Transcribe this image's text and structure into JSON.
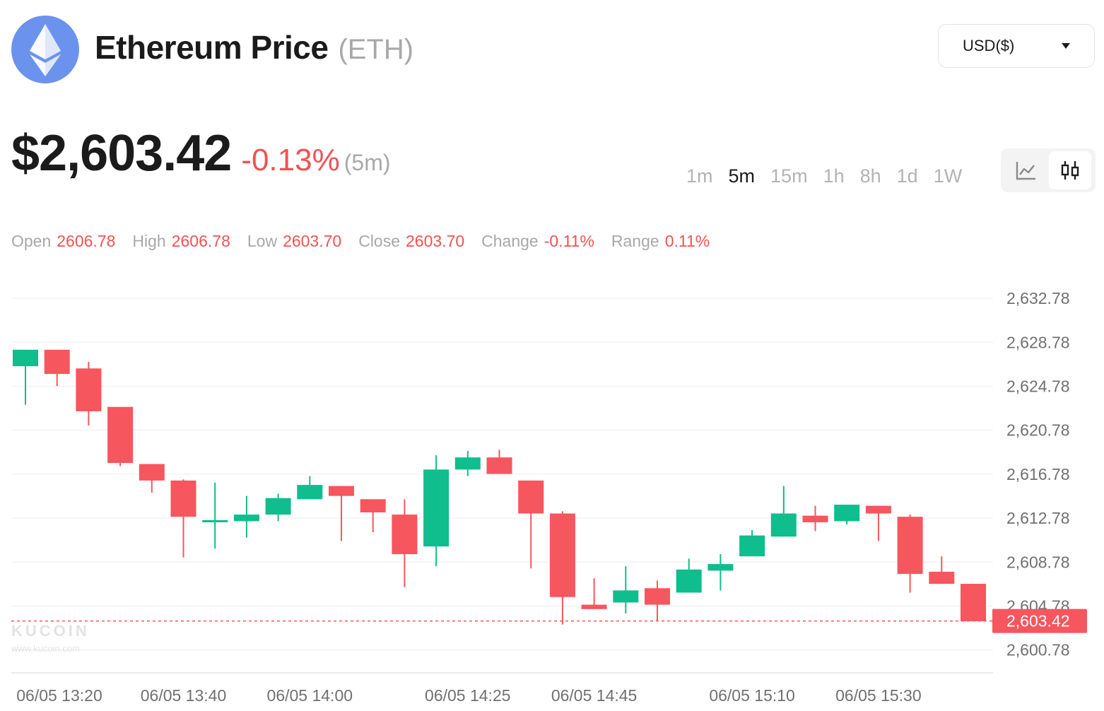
{
  "header": {
    "title": "Ethereum Price",
    "ticker": "(ETH)",
    "currency": "USD($)",
    "logo_icon": "ethereum-logo-icon"
  },
  "price": {
    "current": "$2,603.42",
    "change_pct": "-0.13%",
    "period": "(5m)"
  },
  "intervals": [
    "1m",
    "5m",
    "15m",
    "1h",
    "8h",
    "1d",
    "1W"
  ],
  "active_interval": "5m",
  "chart_modes": [
    "line-chart-icon",
    "candlestick-icon"
  ],
  "active_chart_mode": "candlestick-icon",
  "ohlc": [
    {
      "label": "Open",
      "value": "2606.78"
    },
    {
      "label": "High",
      "value": "2606.78"
    },
    {
      "label": "Low",
      "value": "2603.70"
    },
    {
      "label": "Close",
      "value": "2603.70"
    },
    {
      "label": "Change",
      "value": "-0.11%"
    },
    {
      "label": "Range",
      "value": "0.11%"
    }
  ],
  "watermark": {
    "brand": "KUCOIN",
    "url": "www.kucoin.com"
  },
  "colors": {
    "up": "#10bd8d",
    "down": "#f6565e",
    "grid": "#eeeeee",
    "axis_text": "#707070"
  },
  "chart_data": {
    "type": "candlestick",
    "interval": "5m",
    "y_ticks": [
      "2,632.78",
      "2,628.78",
      "2,624.78",
      "2,620.78",
      "2,616.78",
      "2,612.78",
      "2,608.78",
      "2,604.78",
      "2,600.78"
    ],
    "y_tick_values": [
      2632.78,
      2628.78,
      2624.78,
      2620.78,
      2616.78,
      2612.78,
      2608.78,
      2604.78,
      2600.78
    ],
    "ylim": [
      2598.7,
      2634.2
    ],
    "x_ticks": [
      {
        "label": "06/05 13:20",
        "index": 0
      },
      {
        "label": "06/05 13:40",
        "index": 5
      },
      {
        "label": "06/05 14:00",
        "index": 9
      },
      {
        "label": "06/05 14:25",
        "index": 14
      },
      {
        "label": "06/05 14:45",
        "index": 18
      },
      {
        "label": "06/05 15:10",
        "index": 23
      },
      {
        "label": "06/05 15:30",
        "index": 27
      }
    ],
    "last_price": 2603.42,
    "last_price_label": "2,603.42",
    "candles": [
      {
        "t": "06/05 13:20",
        "o": 2626.6,
        "h": 2628.0,
        "l": 2623.1,
        "c": 2628.1
      },
      {
        "t": "06/05 13:25",
        "o": 2628.1,
        "h": 2628.1,
        "l": 2624.8,
        "c": 2625.9
      },
      {
        "t": "06/05 13:30",
        "o": 2626.4,
        "h": 2627.0,
        "l": 2621.2,
        "c": 2622.5
      },
      {
        "t": "06/05 13:35",
        "o": 2622.9,
        "h": 2622.9,
        "l": 2617.5,
        "c": 2617.8
      },
      {
        "t": "06/05 13:40",
        "o": 2617.7,
        "h": 2617.7,
        "l": 2615.1,
        "c": 2616.2
      },
      {
        "t": "06/05 13:45",
        "o": 2616.2,
        "h": 2616.3,
        "l": 2609.2,
        "c": 2612.9
      },
      {
        "t": "06/05 13:50",
        "o": 2612.4,
        "h": 2616.0,
        "l": 2610.0,
        "c": 2612.6
      },
      {
        "t": "06/05 13:55",
        "o": 2612.5,
        "h": 2614.8,
        "l": 2611.0,
        "c": 2613.1
      },
      {
        "t": "06/05 14:00",
        "o": 2613.1,
        "h": 2615.0,
        "l": 2612.5,
        "c": 2614.6
      },
      {
        "t": "06/05 14:05",
        "o": 2614.5,
        "h": 2616.6,
        "l": 2614.5,
        "c": 2615.8
      },
      {
        "t": "06/05 14:10",
        "o": 2615.7,
        "h": 2615.7,
        "l": 2610.7,
        "c": 2614.8
      },
      {
        "t": "06/05 14:15",
        "o": 2614.5,
        "h": 2614.5,
        "l": 2611.5,
        "c": 2613.3
      },
      {
        "t": "06/05 14:20",
        "o": 2613.1,
        "h": 2614.5,
        "l": 2606.5,
        "c": 2609.5
      },
      {
        "t": "06/05 14:25",
        "o": 2610.2,
        "h": 2618.5,
        "l": 2608.4,
        "c": 2617.2
      },
      {
        "t": "06/05 14:30",
        "o": 2617.2,
        "h": 2618.9,
        "l": 2616.6,
        "c": 2618.3
      },
      {
        "t": "06/05 14:35",
        "o": 2618.3,
        "h": 2619.0,
        "l": 2616.8,
        "c": 2616.8
      },
      {
        "t": "06/05 14:40",
        "o": 2616.2,
        "h": 2616.2,
        "l": 2608.2,
        "c": 2613.2
      },
      {
        "t": "06/05 14:45",
        "o": 2613.2,
        "h": 2613.4,
        "l": 2603.1,
        "c": 2605.6
      },
      {
        "t": "06/05 14:50",
        "o": 2604.9,
        "h": 2607.3,
        "l": 2604.5,
        "c": 2604.5
      },
      {
        "t": "06/05 14:55",
        "o": 2605.1,
        "h": 2608.4,
        "l": 2604.1,
        "c": 2606.2
      },
      {
        "t": "06/05 15:00",
        "o": 2606.4,
        "h": 2607.1,
        "l": 2603.4,
        "c": 2604.9
      },
      {
        "t": "06/05 15:05",
        "o": 2606.0,
        "h": 2609.1,
        "l": 2606.0,
        "c": 2608.1
      },
      {
        "t": "06/05 15:10",
        "o": 2608.0,
        "h": 2609.5,
        "l": 2606.2,
        "c": 2608.6
      },
      {
        "t": "06/05 15:15",
        "o": 2609.3,
        "h": 2611.7,
        "l": 2609.3,
        "c": 2611.2
      },
      {
        "t": "06/05 15:20",
        "o": 2611.1,
        "h": 2615.7,
        "l": 2611.1,
        "c": 2613.2
      },
      {
        "t": "06/05 15:25",
        "o": 2613.0,
        "h": 2613.9,
        "l": 2611.6,
        "c": 2612.4
      },
      {
        "t": "06/05 15:30",
        "o": 2612.5,
        "h": 2614.0,
        "l": 2612.2,
        "c": 2614.0
      },
      {
        "t": "06/05 15:35",
        "o": 2613.9,
        "h": 2613.9,
        "l": 2610.7,
        "c": 2613.2
      },
      {
        "t": "06/05 15:40",
        "o": 2612.9,
        "h": 2613.1,
        "l": 2606.0,
        "c": 2607.7
      },
      {
        "t": "06/05 15:45",
        "o": 2607.9,
        "h": 2609.3,
        "l": 2606.8,
        "c": 2606.8
      },
      {
        "t": "06/05 15:50",
        "o": 2606.8,
        "h": 2606.8,
        "l": 2603.4,
        "c": 2603.4
      }
    ]
  }
}
